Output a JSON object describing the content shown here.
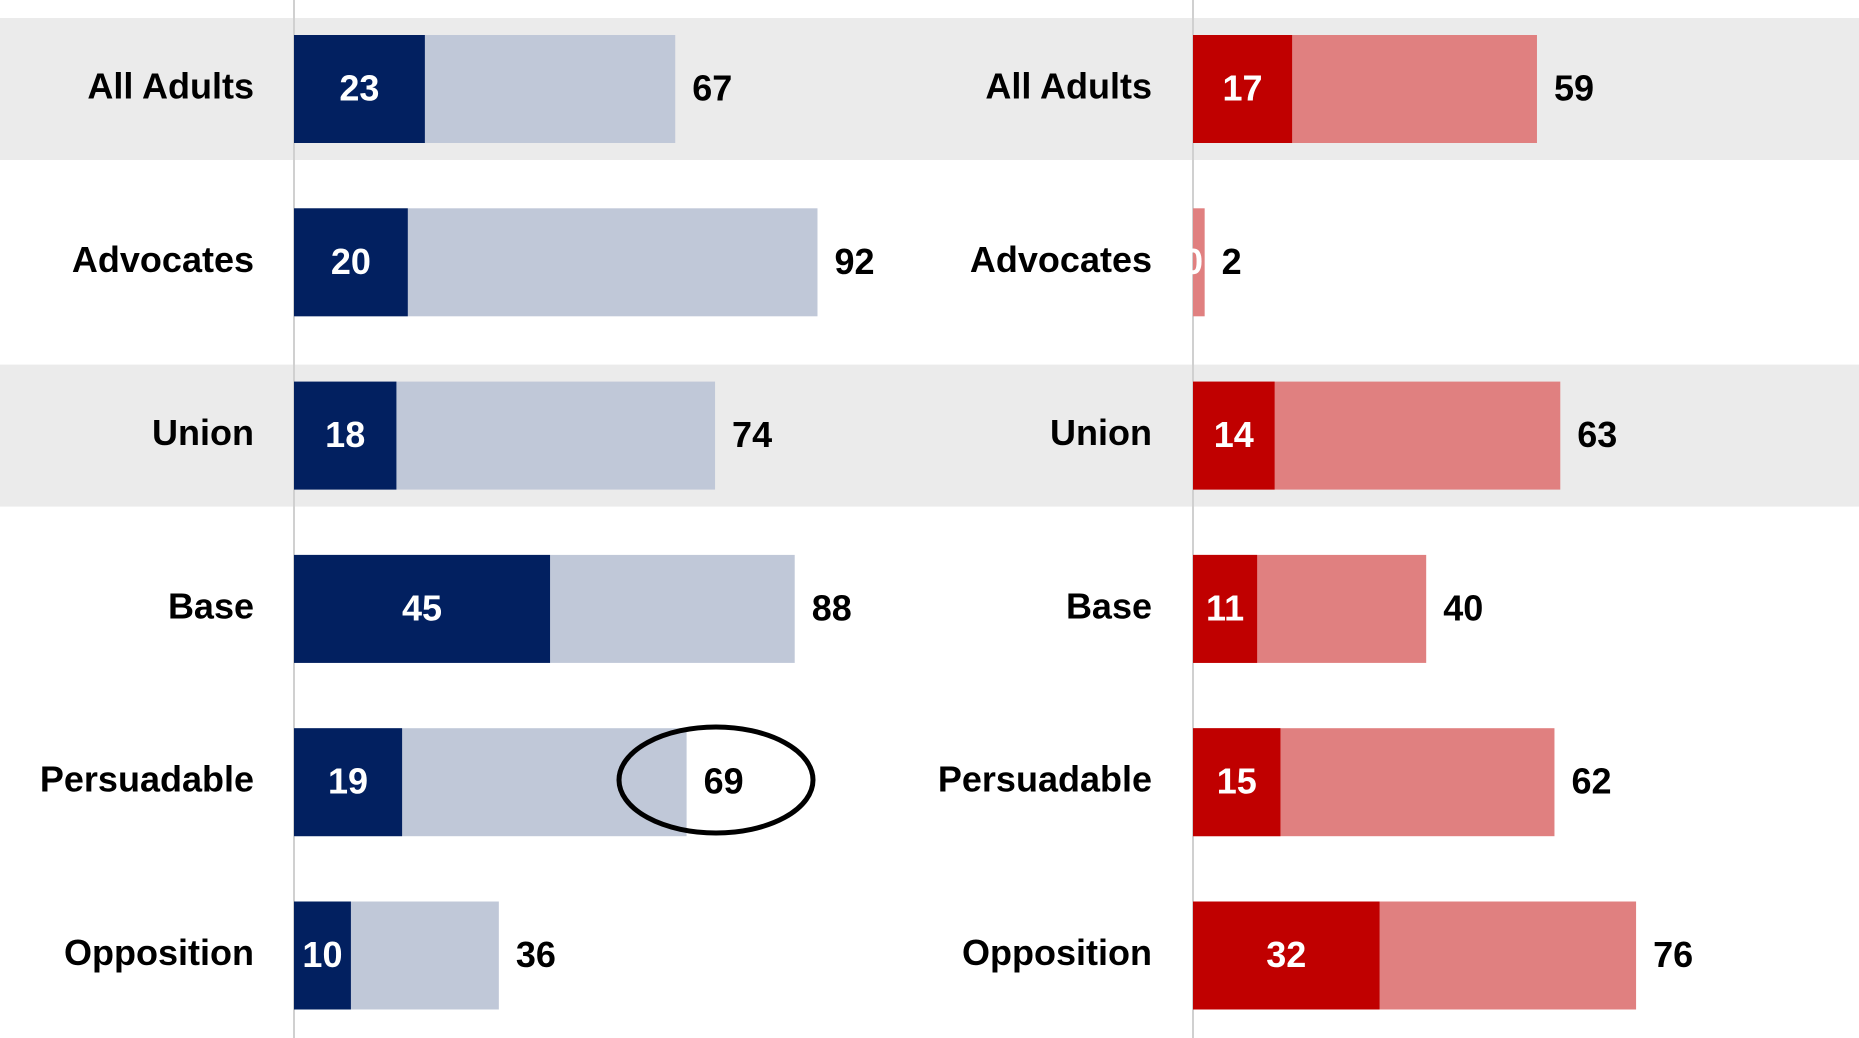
{
  "chart_data": [
    {
      "type": "bar",
      "categories": [
        "All Adults",
        "Advocates",
        "Union",
        "Base",
        "Persuadable",
        "Opposition"
      ],
      "series": [
        {
          "color": "#c0c8d8",
          "values": [
            67,
            92,
            74,
            88,
            69,
            36
          ]
        },
        {
          "color": "#022060",
          "values": [
            23,
            20,
            18,
            45,
            19,
            10
          ]
        }
      ],
      "xlim": [
        0,
        100
      ]
    },
    {
      "type": "bar",
      "categories": [
        "All Adults",
        "Advocates",
        "Union",
        "Base",
        "Persuadable",
        "Opposition"
      ],
      "series": [
        {
          "color": "#e08080",
          "values": [
            59,
            2,
            63,
            40,
            62,
            76
          ]
        },
        {
          "color": "#c00000",
          "values": [
            17,
            0,
            14,
            11,
            15,
            32
          ]
        }
      ],
      "xlim": [
        0,
        100
      ]
    }
  ]
}
